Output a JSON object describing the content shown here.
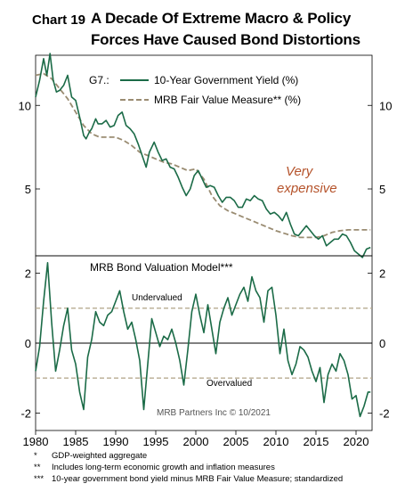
{
  "header": {
    "chart_number": "Chart 19",
    "title_line1": "A Decade Of Extreme Macro & Policy",
    "title_line2": "Forces Have Caused Bond Distortions"
  },
  "colors": {
    "yield_line": "#1b6b47",
    "fair_value_line": "#9a8c72",
    "annotation": "#b5532b",
    "reference_line": "#b7ab91"
  },
  "chart_data": [
    {
      "type": "line",
      "panel": "top",
      "title": "",
      "legend_prefix": "G7.:",
      "xlim": [
        1980,
        2022
      ],
      "ylim": [
        1,
        13
      ],
      "y_ticks": [
        5,
        10
      ],
      "y_tick_labels": [
        "5",
        "10"
      ],
      "annotation": [
        "Very",
        "expensive"
      ],
      "series": [
        {
          "name": "10-Year Government Yield (%)",
          "style": "solid",
          "x": [
            1980.0,
            1980.5,
            1981.0,
            1981.4,
            1981.8,
            1982.2,
            1982.6,
            1983.0,
            1983.5,
            1984.0,
            1984.5,
            1985.0,
            1985.5,
            1986.0,
            1986.3,
            1986.7,
            1987.0,
            1987.5,
            1987.8,
            1988.3,
            1988.8,
            1989.3,
            1989.8,
            1990.3,
            1990.8,
            1991.3,
            1991.8,
            1992.3,
            1992.8,
            1993.3,
            1993.8,
            1994.2,
            1994.8,
            1995.3,
            1995.8,
            1996.3,
            1996.8,
            1997.3,
            1997.8,
            1998.3,
            1998.8,
            1999.3,
            1999.8,
            2000.3,
            2000.8,
            2001.3,
            2001.8,
            2002.3,
            2002.8,
            2003.3,
            2003.8,
            2004.3,
            2004.8,
            2005.3,
            2005.8,
            2006.3,
            2006.8,
            2007.3,
            2007.8,
            2008.3,
            2008.8,
            2009.3,
            2009.8,
            2010.3,
            2010.8,
            2011.3,
            2011.8,
            2012.3,
            2012.8,
            2013.3,
            2013.8,
            2014.3,
            2014.8,
            2015.3,
            2015.8,
            2016.3,
            2016.8,
            2017.3,
            2017.8,
            2018.3,
            2018.8,
            2019.3,
            2019.8,
            2020.3,
            2020.8,
            2021.3,
            2021.8
          ],
          "y": [
            10.5,
            11.5,
            12.8,
            11.8,
            13.1,
            11.5,
            10.8,
            10.9,
            11.2,
            11.8,
            10.5,
            10.3,
            9.3,
            8.2,
            8.0,
            8.4,
            8.6,
            9.2,
            8.9,
            8.9,
            9.1,
            8.7,
            8.8,
            9.4,
            9.6,
            8.8,
            8.6,
            8.3,
            7.7,
            7.0,
            6.3,
            7.2,
            7.8,
            7.2,
            6.7,
            6.8,
            6.3,
            6.2,
            5.7,
            5.1,
            4.6,
            5.0,
            5.8,
            6.1,
            5.6,
            5.1,
            5.2,
            5.1,
            4.6,
            4.2,
            4.5,
            4.5,
            4.3,
            3.9,
            3.9,
            4.4,
            4.3,
            4.6,
            4.4,
            4.3,
            3.8,
            3.5,
            3.6,
            3.4,
            3.1,
            3.6,
            2.9,
            2.3,
            2.2,
            2.5,
            2.8,
            2.5,
            2.2,
            2.0,
            2.2,
            1.6,
            1.8,
            2.0,
            2.0,
            2.3,
            2.2,
            1.8,
            1.3,
            1.1,
            0.9,
            1.4,
            1.5
          ]
        },
        {
          "name": "MRB Fair Value Measure** (%)",
          "style": "dashed",
          "x": [
            1980.0,
            1981.0,
            1982.0,
            1983.0,
            1984.0,
            1985.0,
            1986.0,
            1987.0,
            1988.0,
            1989.0,
            1990.0,
            1991.0,
            1992.0,
            1993.0,
            1994.0,
            1995.0,
            1996.0,
            1997.0,
            1998.0,
            1999.0,
            2000.0,
            2001.0,
            2002.0,
            2003.0,
            2004.0,
            2005.0,
            2006.0,
            2007.0,
            2008.0,
            2009.0,
            2010.0,
            2011.0,
            2012.0,
            2013.0,
            2014.0,
            2015.0,
            2016.0,
            2017.0,
            2018.0,
            2019.0,
            2020.0,
            2021.0,
            2021.8
          ],
          "y": [
            11.8,
            11.9,
            11.6,
            11.0,
            10.4,
            9.6,
            8.8,
            8.3,
            8.1,
            8.1,
            8.1,
            7.9,
            7.6,
            7.2,
            7.0,
            6.8,
            6.6,
            6.5,
            6.3,
            6.1,
            6.2,
            5.6,
            4.6,
            4.0,
            3.7,
            3.5,
            3.3,
            3.1,
            2.9,
            2.7,
            2.5,
            2.35,
            2.2,
            2.1,
            2.1,
            2.1,
            2.2,
            2.4,
            2.5,
            2.55,
            2.55,
            2.55,
            2.55
          ]
        }
      ]
    },
    {
      "type": "line",
      "panel": "bottom",
      "title": "MRB Bond Valuation Model***",
      "xlim": [
        1980,
        2022
      ],
      "ylim": [
        -2.5,
        2.5
      ],
      "y_ticks": [
        -2,
        0,
        2
      ],
      "y_tick_labels": [
        "-2",
        "0",
        "2"
      ],
      "x_ticks": [
        1980,
        1985,
        1990,
        1995,
        2000,
        2005,
        2010,
        2015,
        2020
      ],
      "x_tick_labels": [
        "1980",
        "1985",
        "1990",
        "1995",
        "2000",
        "2005",
        "2010",
        "2015",
        "2020"
      ],
      "reference_lines": [
        {
          "y": 1,
          "label": "Undervalued"
        },
        {
          "y": -1,
          "label": "Overvalued"
        }
      ],
      "source": "MRB Partners Inc © 10/2021",
      "series": [
        {
          "name": "",
          "x": [
            1980.0,
            1980.5,
            1981.0,
            1981.5,
            1982.0,
            1982.5,
            1983.0,
            1983.5,
            1984.0,
            1984.5,
            1985.0,
            1985.5,
            1986.0,
            1986.5,
            1987.0,
            1987.5,
            1988.0,
            1988.5,
            1989.0,
            1989.5,
            1990.0,
            1990.5,
            1991.0,
            1991.5,
            1992.0,
            1992.5,
            1993.0,
            1993.5,
            1994.0,
            1994.5,
            1995.0,
            1995.5,
            1996.0,
            1996.5,
            1997.0,
            1997.5,
            1998.0,
            1998.5,
            1999.0,
            1999.5,
            2000.0,
            2000.5,
            2001.0,
            2001.5,
            2002.0,
            2002.5,
            2003.0,
            2003.5,
            2004.0,
            2004.5,
            2005.0,
            2005.5,
            2006.0,
            2006.5,
            2007.0,
            2007.5,
            2008.0,
            2008.5,
            2009.0,
            2009.5,
            2010.0,
            2010.5,
            2011.0,
            2011.5,
            2012.0,
            2012.5,
            2013.0,
            2013.5,
            2014.0,
            2014.5,
            2015.0,
            2015.5,
            2016.0,
            2016.5,
            2017.0,
            2017.5,
            2018.0,
            2018.5,
            2019.0,
            2019.5,
            2020.0,
            2020.5,
            2021.0,
            2021.5,
            2021.8
          ],
          "y": [
            -0.8,
            -0.1,
            1.2,
            2.3,
            0.6,
            -0.8,
            -0.2,
            0.5,
            1.0,
            -0.2,
            -0.6,
            -1.4,
            -1.9,
            -0.4,
            0.1,
            0.9,
            0.6,
            0.5,
            0.8,
            0.9,
            1.2,
            1.5,
            0.9,
            0.4,
            0.6,
            0.1,
            -0.5,
            -1.9,
            -0.6,
            0.7,
            0.3,
            -0.1,
            0.2,
            0.1,
            0.4,
            0.0,
            -0.5,
            -1.2,
            -0.2,
            0.9,
            1.4,
            0.8,
            0.3,
            1.1,
            0.4,
            -0.3,
            0.6,
            1.0,
            1.3,
            0.8,
            1.1,
            1.4,
            1.6,
            1.2,
            1.9,
            1.5,
            1.3,
            0.6,
            1.5,
            1.6,
            0.8,
            -0.3,
            0.4,
            -0.5,
            -0.9,
            -0.6,
            -0.1,
            -0.2,
            -0.4,
            -0.8,
            -1.1,
            -0.7,
            -1.7,
            -0.9,
            -0.6,
            -0.8,
            -0.3,
            -0.5,
            -0.9,
            -1.6,
            -1.5,
            -2.1,
            -1.8,
            -1.4,
            -1.4
          ]
        }
      ]
    }
  ],
  "footnotes": [
    {
      "mark": "*",
      "text": "GDP-weighted aggregate"
    },
    {
      "mark": "**",
      "text": "Includes long-term economic growth and inflation measures"
    },
    {
      "mark": "***",
      "text": "10-year government bond yield minus MRB Fair Value Measure; standardized"
    }
  ]
}
